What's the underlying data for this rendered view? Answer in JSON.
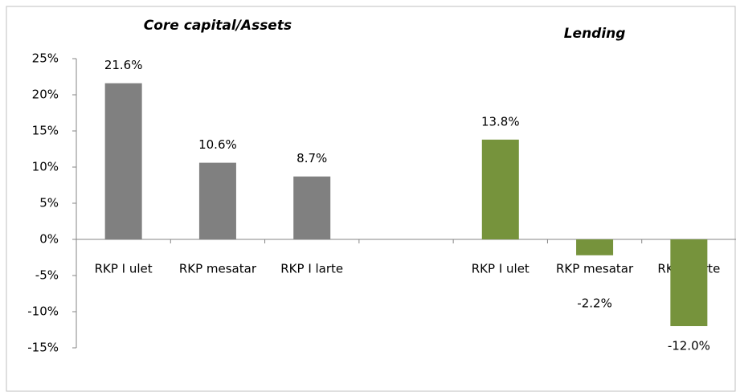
{
  "chart_data": {
    "type": "bar",
    "categories": [
      "RKP I ulet",
      "RKP mesatar",
      "RKP I larte",
      null,
      "RKP I ulet",
      "RKP mesatar",
      "RKP I larte"
    ],
    "series": [
      {
        "name": "Core capital/Assets",
        "color": "#808080",
        "values": [
          21.6,
          10.6,
          8.7,
          null,
          null,
          null,
          null
        ],
        "value_labels": [
          "21.6%",
          "10.6%",
          "8.7%",
          null,
          null,
          null,
          null
        ]
      },
      {
        "name": "Lending",
        "color": "#76933c",
        "values": [
          null,
          null,
          null,
          null,
          13.8,
          -2.2,
          -12.0
        ],
        "value_labels": [
          null,
          null,
          null,
          null,
          "13.8%",
          "-2.2%",
          "-12.0%"
        ]
      }
    ],
    "ylim": [
      -15,
      25
    ],
    "yticks": [
      {
        "value": -15,
        "label": "-15%"
      },
      {
        "value": -10,
        "label": "-10%"
      },
      {
        "value": -5,
        "label": "-5%"
      },
      {
        "value": 0,
        "label": "0%"
      },
      {
        "value": 5,
        "label": "5%"
      },
      {
        "value": 10,
        "label": "10%"
      },
      {
        "value": 15,
        "label": "15%"
      },
      {
        "value": 20,
        "label": "20%"
      },
      {
        "value": 25,
        "label": "25%"
      }
    ],
    "grid": false
  }
}
